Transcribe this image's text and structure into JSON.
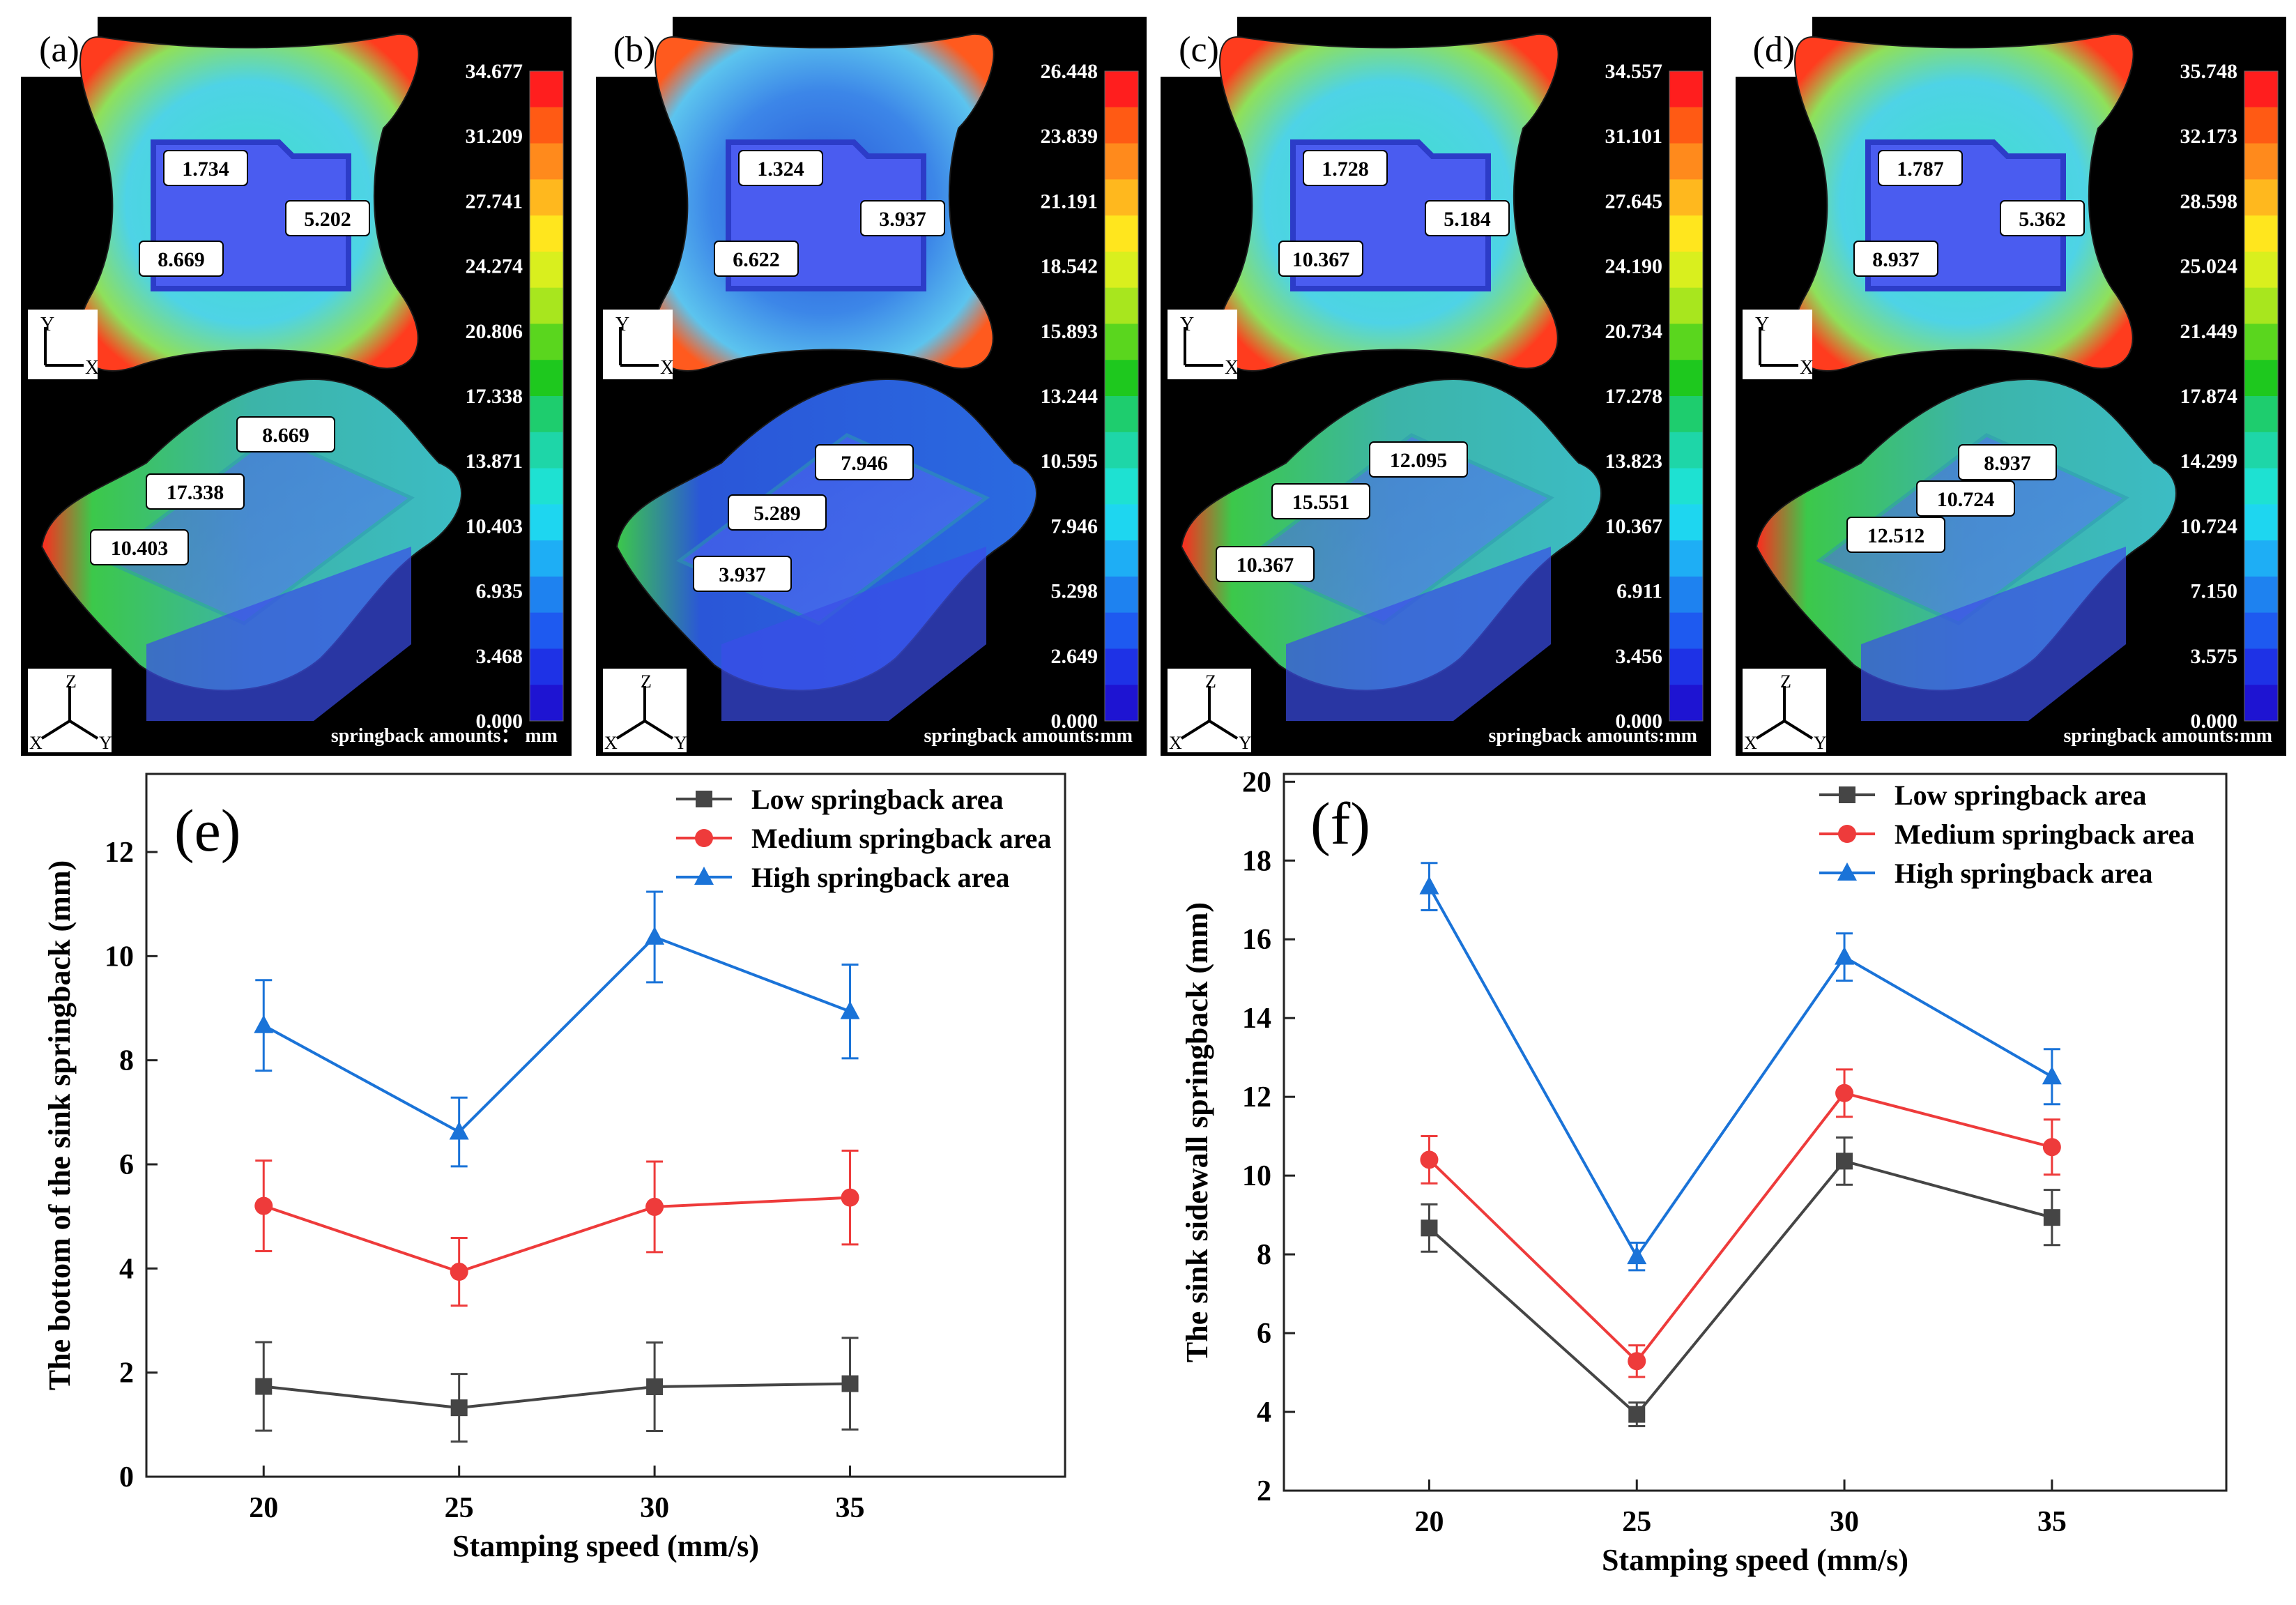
{
  "chart_data": [
    {
      "id": "a",
      "type": "contour",
      "panel_label": "(a)",
      "scale_ticks": [
        "34.677",
        "31.209",
        "27.741",
        "24.274",
        "20.806",
        "17.338",
        "13.871",
        "10.403",
        "6.935",
        "3.468",
        "0.000"
      ],
      "scale_title": "springback amounts： mm",
      "top_values": [
        "1.734",
        "5.202",
        "8.669"
      ],
      "iso_values": [
        "8.669",
        "17.338",
        "10.403"
      ],
      "axis_top": {
        "y": "Y",
        "x": "X"
      },
      "axis_iso": {
        "z": "Z",
        "x": "X",
        "y": "Y"
      }
    },
    {
      "id": "b",
      "type": "contour",
      "panel_label": "(b)",
      "scale_ticks": [
        "26.448",
        "23.839",
        "21.191",
        "18.542",
        "15.893",
        "13.244",
        "10.595",
        "7.946",
        "5.298",
        "2.649",
        "0.000"
      ],
      "scale_title": "springback amounts:mm",
      "top_values": [
        "1.324",
        "3.937",
        "6.622"
      ],
      "iso_values": [
        "7.946",
        "5.289",
        "3.937"
      ],
      "axis_top": {
        "y": "Y",
        "x": "X"
      },
      "axis_iso": {
        "z": "Z",
        "x": "X",
        "y": "Y"
      }
    },
    {
      "id": "c",
      "type": "contour",
      "panel_label": "(c)",
      "scale_ticks": [
        "34.557",
        "31.101",
        "27.645",
        "24.190",
        "20.734",
        "17.278",
        "13.823",
        "10.367",
        "6.911",
        "3.456",
        "0.000"
      ],
      "scale_title": "springback amounts:mm",
      "top_values": [
        "1.728",
        "5.184",
        "10.367"
      ],
      "iso_values": [
        "12.095",
        "15.551",
        "10.367"
      ],
      "axis_top": {
        "y": "Y",
        "x": "X"
      },
      "axis_iso": {
        "z": "Z",
        "x": "X",
        "y": "Y"
      }
    },
    {
      "id": "d",
      "type": "contour",
      "panel_label": "(d)",
      "scale_ticks": [
        "35.748",
        "32.173",
        "28.598",
        "25.024",
        "21.449",
        "17.874",
        "14.299",
        "10.724",
        "7.150",
        "3.575",
        "0.000"
      ],
      "scale_title": "springback amounts:mm",
      "top_values": [
        "1.787",
        "5.362",
        "8.937"
      ],
      "iso_values": [
        "8.937",
        "10.724",
        "12.512"
      ],
      "axis_top": {
        "y": "Y",
        "x": "X"
      },
      "axis_iso": {
        "z": "Z",
        "x": "X",
        "y": "Y"
      }
    },
    {
      "id": "e",
      "type": "line",
      "panel_label": "(e)",
      "xlabel": "Stamping speed (mm/s)",
      "ylabel": "The bottom of the sink springback (mm)",
      "categories": [
        "20",
        "25",
        "30",
        "35"
      ],
      "x": [
        20,
        25,
        30,
        35
      ],
      "xlim": [
        17,
        40.5
      ],
      "ylim": [
        0,
        13.5
      ],
      "yticks": [
        0,
        2,
        4,
        6,
        8,
        10,
        12
      ],
      "series": [
        {
          "name": "Low springback area",
          "color": "#454545",
          "marker": "square",
          "values": [
            1.734,
            1.324,
            1.728,
            1.787
          ],
          "err": [
            0.85,
            0.65,
            0.85,
            0.88
          ]
        },
        {
          "name": "Medium springback area",
          "color": "#ee3b3b",
          "marker": "circle",
          "values": [
            5.202,
            3.937,
            5.184,
            5.362
          ],
          "err": [
            0.87,
            0.65,
            0.87,
            0.9
          ]
        },
        {
          "name": "High springback area",
          "color": "#1a73d8",
          "marker": "triangle",
          "values": [
            8.669,
            6.622,
            10.367,
            8.937
          ],
          "err": [
            0.87,
            0.66,
            0.87,
            0.9
          ]
        }
      ]
    },
    {
      "id": "f",
      "type": "line",
      "panel_label": "(f)",
      "xlabel": "Stamping speed (mm/s)",
      "ylabel": "The sink sidewall springback (mm)",
      "categories": [
        "20",
        "25",
        "30",
        "35"
      ],
      "x": [
        20,
        25,
        30,
        35
      ],
      "xlim": [
        16.5,
        39.2
      ],
      "ylim": [
        2,
        20.2
      ],
      "yticks": [
        2,
        4,
        6,
        8,
        10,
        12,
        14,
        16,
        18,
        20
      ],
      "series": [
        {
          "name": "Low springback area",
          "color": "#454545",
          "marker": "square",
          "values": [
            8.669,
            3.937,
            10.367,
            8.937
          ],
          "err": [
            0.6,
            0.3,
            0.6,
            0.7
          ]
        },
        {
          "name": "Medium springback area",
          "color": "#ee3b3b",
          "marker": "circle",
          "values": [
            10.403,
            5.289,
            12.095,
            10.724
          ],
          "err": [
            0.6,
            0.4,
            0.6,
            0.7
          ]
        },
        {
          "name": "High springback area",
          "color": "#1a73d8",
          "marker": "triangle",
          "values": [
            17.338,
            7.946,
            15.551,
            12.512
          ],
          "err": [
            0.6,
            0.35,
            0.6,
            0.7
          ]
        }
      ]
    }
  ],
  "colors": {
    "scale": [
      "#ff1e1e",
      "#ff5a14",
      "#ff8a1c",
      "#ffb81e",
      "#ffe61e",
      "#d9ef1e",
      "#a8e61e",
      "#5ad61e",
      "#1ec81e",
      "#1ecd6e",
      "#1ed6a8",
      "#1ee1d2",
      "#1ed6f0",
      "#1eaef5",
      "#1e82f0",
      "#1e5af0",
      "#1e32e6",
      "#1e14d2"
    ],
    "panel_bg": "#000000",
    "part_light": "#55d6e8",
    "part_blue": "#3a6de6"
  }
}
